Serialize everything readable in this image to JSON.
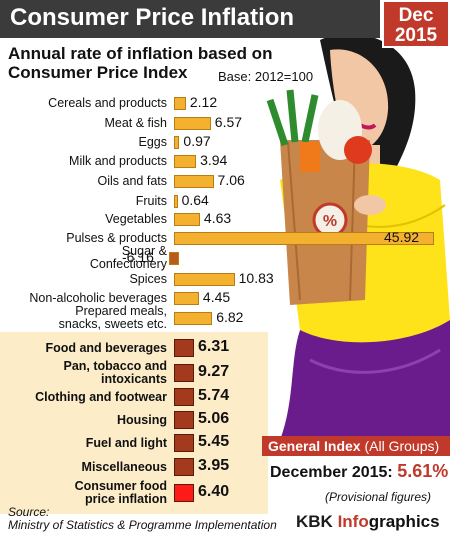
{
  "header": {
    "title": "Consumer Price Inflation",
    "date_line1": "Dec",
    "date_line2": "2015"
  },
  "subtitle": {
    "line1": "Annual rate of inflation based on",
    "line2": "Consumer Price Index",
    "base": "Base: 2012=100"
  },
  "general_index": {
    "heading": "General Index",
    "heading_note": "(All Groups)",
    "label": "December 2015:",
    "value": "5.61%",
    "note": "(Provisional figures)"
  },
  "source": {
    "label": "Source:",
    "text": "Ministry of Statistics & Programme Implementation"
  },
  "credit": {
    "brand": "KBK ",
    "accent": "Info",
    "rest": "graphics"
  },
  "colors": {
    "bar_item": "#f4b12f",
    "bar_item_negative": "#b85c1c",
    "bar_group": "#a33a1d",
    "bar_cpi": "#ff1a1a",
    "title_bg": "#3b3b3b",
    "accent": "#c0392b",
    "panel": "#fcecc8"
  },
  "chart_data": {
    "type": "bar",
    "orientation": "horizontal",
    "title": "Consumer Price Inflation",
    "subtitle": "Annual rate of inflation based on Consumer Price Index",
    "categories": [
      "Cereals and products",
      "Meat & fish",
      "Eggs",
      "Milk and products",
      "Oils and fats",
      "Fruits",
      "Vegetables",
      "Pulses & products",
      "Sugar & Confectionery",
      "Spices",
      "Non-alcoholic beverages",
      "Prepared meals, snacks, sweets etc.",
      "Food and beverages",
      "Pan, tobacco and intoxicants",
      "Clothing and footwear",
      "Housing",
      "Fuel and light",
      "Miscellaneous",
      "Consumer food price inflation"
    ],
    "values": [
      2.12,
      6.57,
      0.97,
      3.94,
      7.06,
      0.64,
      4.63,
      45.92,
      -6.16,
      10.83,
      4.45,
      6.82,
      6.31,
      9.27,
      5.74,
      5.06,
      5.45,
      3.95,
      6.4
    ],
    "value_labels": [
      "2.12",
      "6.57",
      "0.97",
      "3.94",
      "7.06",
      "0.64",
      "4.63",
      "45.92",
      "-6.16",
      "10.83",
      "4.45",
      "6.82",
      "6.31",
      "9.27",
      "5.74",
      "5.06",
      "5.45",
      "3.95",
      "6.40"
    ],
    "groups": [
      "item",
      "item",
      "item",
      "item",
      "item",
      "item",
      "item",
      "item",
      "item",
      "item",
      "item",
      "item",
      "group",
      "group",
      "group",
      "group",
      "group",
      "group",
      "cpi"
    ]
  }
}
